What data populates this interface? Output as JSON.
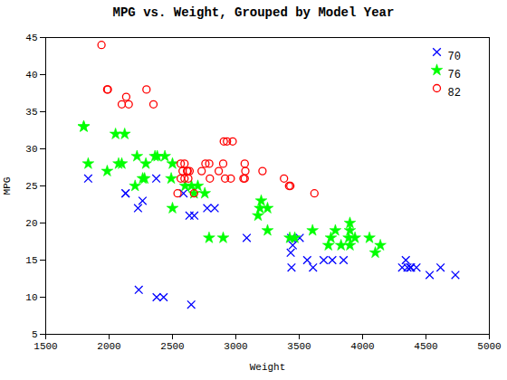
{
  "chart_data": {
    "type": "scatter",
    "title": "MPG vs. Weight, Grouped by Model Year",
    "xlabel": "Weight",
    "ylabel": "MPG",
    "xlim": [
      1500,
      5000
    ],
    "ylim": [
      5,
      45
    ],
    "xticks": [
      1500,
      2000,
      2500,
      3000,
      3500,
      4000,
      4500,
      5000
    ],
    "yticks": [
      5,
      10,
      15,
      20,
      25,
      30,
      35,
      40,
      45
    ],
    "grid": false,
    "legend": "upper right",
    "series": [
      {
        "name": "70",
        "color": "#0000FF",
        "marker": "x",
        "x": [
          3504,
          3693,
          3436,
          3433,
          3449,
          4341,
          4354,
          4312,
          4425,
          3850,
          3563,
          3609,
          3761,
          3086,
          2372,
          2833,
          2774,
          2587,
          2130,
          1835,
          2672,
          2430,
          2375,
          2234,
          2648,
          4615,
          4376,
          4382,
          4732,
          2130,
          2264,
          2228,
          2634,
          3439,
          4529
        ],
        "values": [
          18,
          15,
          18,
          16,
          17,
          15,
          14,
          14,
          14,
          15,
          15,
          14,
          15,
          18,
          26,
          22,
          22,
          24,
          24,
          26,
          21,
          10,
          10,
          11,
          9,
          14,
          14,
          14,
          13,
          24,
          23,
          22,
          21,
          14,
          13
        ]
      },
      {
        "name": "76",
        "color": "#00FF00",
        "marker": "*",
        "x": [
          1800,
          1835,
          2205,
          2600,
          2440,
          2670,
          2380,
          3900,
          3250,
          4100,
          3730,
          3785,
          2100,
          2700,
          2650,
          2362,
          2220,
          2123,
          2500,
          2290,
          2265,
          2755,
          2051,
          2075,
          1985,
          1800,
          3250,
          3465,
          3425,
          3200,
          3190,
          4140,
          4054,
          3605,
          3940,
          3890,
          3900,
          3830,
          3900,
          2789,
          2900,
          2500,
          2280,
          2490,
          3175,
          3750
        ],
        "values": [
          33,
          28,
          25,
          25,
          29,
          24,
          29,
          20,
          19,
          16,
          17,
          19,
          28,
          25,
          25,
          29,
          29,
          32,
          28,
          28,
          26,
          24,
          32,
          28,
          27,
          33,
          22,
          18,
          18,
          23,
          22,
          17,
          18,
          19,
          18,
          18,
          17,
          17,
          19,
          18,
          18,
          22,
          26,
          26,
          21,
          18
        ]
      },
      {
        "name": "82",
        "color": "#FF0000",
        "marker": "o",
        "x": [
          2295,
          1940,
          2155,
          2565,
          1985,
          2905,
          2930,
          2975,
          3430,
          3210,
          3380,
          3070,
          3620,
          2790,
          3420,
          1990,
          2135,
          2670,
          2595,
          2625,
          2580,
          2865,
          2915,
          2960,
          2730,
          2565,
          2595,
          2795,
          2100,
          2350,
          2615,
          2635,
          2620,
          2540,
          2760,
          2900,
          3060,
          3070,
          3075
        ],
        "values": [
          38,
          44,
          36,
          26,
          38,
          31,
          31,
          31,
          25,
          27,
          26,
          28,
          24,
          28,
          25,
          38,
          37,
          24,
          26,
          26,
          27,
          27,
          26,
          26,
          27,
          28,
          28,
          26,
          36,
          36,
          27,
          27,
          27,
          24,
          28,
          28,
          26,
          26,
          27
        ]
      }
    ]
  }
}
